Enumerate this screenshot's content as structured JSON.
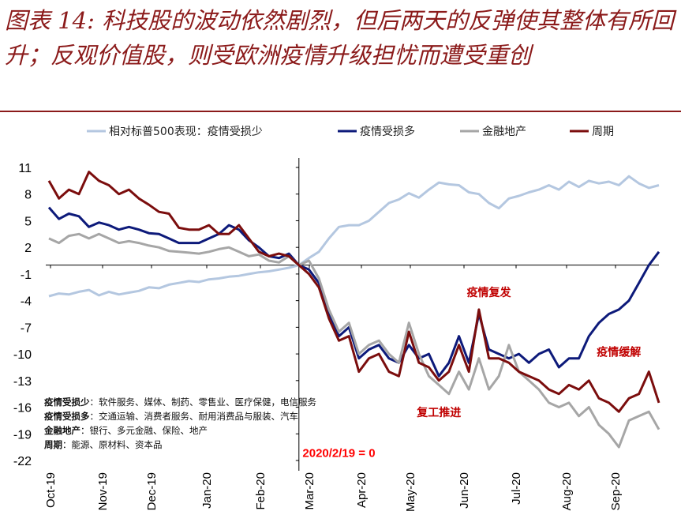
{
  "header": {
    "title": "图表 14: 科技股的波动依然剧烈，但后两天的反弹使其整体有所回升；反观价值股，则受欧洲疫情升级担忧而遭受重创"
  },
  "chart_data": {
    "type": "line",
    "ylim": [
      -22,
      11
    ],
    "yticks": [
      "11",
      "8",
      "5",
      "2",
      "-1",
      "-4",
      "-7",
      "-10",
      "-13",
      "-16",
      "-19",
      "-22"
    ],
    "xticks": [
      "Oct-19",
      "Nov-19",
      "Dec-19",
      "Jan-20",
      "Feb-20",
      "Mar-20",
      "Apr-20",
      "May-20",
      "Jun-20",
      "Jul-20",
      "Aug-20",
      "Sep-20"
    ],
    "legend_position": "top",
    "series": [
      {
        "name": "相对标普500表现：疫情受损少",
        "color": "#b4c7e0",
        "points": [
          [
            0,
            -3.5
          ],
          [
            1,
            -3.2
          ],
          [
            2,
            -3.3
          ],
          [
            3,
            -3.0
          ],
          [
            4,
            -2.8
          ],
          [
            5,
            -3.4
          ],
          [
            6,
            -3.0
          ],
          [
            7,
            -3.3
          ],
          [
            8,
            -3.1
          ],
          [
            9,
            -2.9
          ],
          [
            10,
            -2.5
          ],
          [
            11,
            -2.6
          ],
          [
            12,
            -2.2
          ],
          [
            13,
            -2.0
          ],
          [
            14,
            -1.8
          ],
          [
            15,
            -1.9
          ],
          [
            16,
            -1.6
          ],
          [
            17,
            -1.5
          ],
          [
            18,
            -1.3
          ],
          [
            19,
            -1.2
          ],
          [
            20,
            -1.0
          ],
          [
            21,
            -0.8
          ],
          [
            22,
            -0.7
          ],
          [
            23,
            -0.5
          ],
          [
            24,
            -0.3
          ],
          [
            25,
            0.0
          ],
          [
            26,
            0.8
          ],
          [
            27,
            1.5
          ],
          [
            28,
            3.0
          ],
          [
            29,
            4.3
          ],
          [
            30,
            4.5
          ],
          [
            31,
            4.5
          ],
          [
            32,
            5.0
          ],
          [
            33,
            6.0
          ],
          [
            34,
            7.0
          ],
          [
            35,
            7.4
          ],
          [
            36,
            8.1
          ],
          [
            37,
            7.6
          ],
          [
            38,
            8.5
          ],
          [
            39,
            9.3
          ],
          [
            40,
            9.1
          ],
          [
            41,
            9.0
          ],
          [
            42,
            8.2
          ],
          [
            43,
            8.0
          ],
          [
            44,
            7.0
          ],
          [
            45,
            6.4
          ],
          [
            46,
            7.5
          ],
          [
            47,
            7.8
          ],
          [
            48,
            8.2
          ],
          [
            49,
            8.5
          ],
          [
            50,
            9.0
          ],
          [
            51,
            8.5
          ],
          [
            52,
            9.4
          ],
          [
            53,
            8.8
          ],
          [
            54,
            9.5
          ],
          [
            55,
            9.2
          ],
          [
            56,
            9.4
          ],
          [
            57,
            9.0
          ],
          [
            58,
            10.0
          ],
          [
            59,
            9.2
          ],
          [
            60,
            8.7
          ],
          [
            61,
            9.0
          ]
        ]
      },
      {
        "name": "疫情受损多",
        "color": "#0d1a7a",
        "points": [
          [
            0,
            6.5
          ],
          [
            1,
            5.2
          ],
          [
            2,
            5.8
          ],
          [
            3,
            5.5
          ],
          [
            4,
            4.3
          ],
          [
            5,
            4.8
          ],
          [
            6,
            4.5
          ],
          [
            7,
            4.0
          ],
          [
            8,
            4.3
          ],
          [
            9,
            4.0
          ],
          [
            10,
            3.6
          ],
          [
            11,
            3.5
          ],
          [
            12,
            3.0
          ],
          [
            13,
            2.5
          ],
          [
            14,
            2.5
          ],
          [
            15,
            2.5
          ],
          [
            16,
            3.0
          ],
          [
            17,
            3.5
          ],
          [
            18,
            4.5
          ],
          [
            19,
            4.0
          ],
          [
            20,
            2.8
          ],
          [
            21,
            2.0
          ],
          [
            22,
            1.0
          ],
          [
            23,
            0.8
          ],
          [
            24,
            1.3
          ],
          [
            25,
            0.0
          ],
          [
            26,
            -0.5
          ],
          [
            27,
            -2.0
          ],
          [
            28,
            -5.5
          ],
          [
            29,
            -8.0
          ],
          [
            30,
            -7.0
          ],
          [
            31,
            -10.5
          ],
          [
            32,
            -9.5
          ],
          [
            33,
            -9.0
          ],
          [
            34,
            -10.5
          ],
          [
            35,
            -11.0
          ],
          [
            36,
            -9.0
          ],
          [
            37,
            -10.5
          ],
          [
            38,
            -10.0
          ],
          [
            39,
            -12.5
          ],
          [
            40,
            -11.0
          ],
          [
            41,
            -8.0
          ],
          [
            42,
            -11.0
          ],
          [
            43,
            -5.5
          ],
          [
            44,
            -9.5
          ],
          [
            45,
            -10.0
          ],
          [
            46,
            -10.5
          ],
          [
            47,
            -10.0
          ],
          [
            48,
            -11.0
          ],
          [
            49,
            -10.0
          ],
          [
            50,
            -9.5
          ],
          [
            51,
            -11.5
          ],
          [
            52,
            -10.5
          ],
          [
            53,
            -10.5
          ],
          [
            54,
            -8.0
          ],
          [
            55,
            -6.5
          ],
          [
            56,
            -5.5
          ],
          [
            57,
            -5.0
          ],
          [
            58,
            -4.0
          ],
          [
            59,
            -2.0
          ],
          [
            60,
            0.0
          ],
          [
            61,
            1.5
          ]
        ]
      },
      {
        "name": "金融地产",
        "color": "#a6a6a6",
        "points": [
          [
            0,
            3.0
          ],
          [
            1,
            2.5
          ],
          [
            2,
            3.3
          ],
          [
            3,
            3.5
          ],
          [
            4,
            3.0
          ],
          [
            5,
            3.5
          ],
          [
            6,
            3.0
          ],
          [
            7,
            2.5
          ],
          [
            8,
            2.7
          ],
          [
            9,
            2.5
          ],
          [
            10,
            2.2
          ],
          [
            11,
            2.0
          ],
          [
            12,
            1.6
          ],
          [
            13,
            1.5
          ],
          [
            14,
            1.4
          ],
          [
            15,
            1.3
          ],
          [
            16,
            1.5
          ],
          [
            17,
            1.8
          ],
          [
            18,
            2.0
          ],
          [
            19,
            1.5
          ],
          [
            20,
            1.0
          ],
          [
            21,
            1.2
          ],
          [
            22,
            0.5
          ],
          [
            23,
            0.3
          ],
          [
            24,
            1.0
          ],
          [
            25,
            0.0
          ],
          [
            26,
            0.5
          ],
          [
            27,
            -1.5
          ],
          [
            28,
            -5.0
          ],
          [
            29,
            -7.5
          ],
          [
            30,
            -6.5
          ],
          [
            31,
            -10.0
          ],
          [
            32,
            -9.0
          ],
          [
            33,
            -8.5
          ],
          [
            34,
            -10.0
          ],
          [
            35,
            -11.0
          ],
          [
            36,
            -6.5
          ],
          [
            37,
            -10.0
          ],
          [
            38,
            -12.5
          ],
          [
            39,
            -13.5
          ],
          [
            40,
            -14.5
          ],
          [
            41,
            -12.0
          ],
          [
            42,
            -14.0
          ],
          [
            43,
            -10.5
          ],
          [
            44,
            -14.0
          ],
          [
            45,
            -12.5
          ],
          [
            46,
            -9.0
          ],
          [
            47,
            -12.0
          ],
          [
            48,
            -13.0
          ],
          [
            49,
            -14.0
          ],
          [
            50,
            -15.5
          ],
          [
            51,
            -16.0
          ],
          [
            52,
            -15.5
          ],
          [
            53,
            -17.0
          ],
          [
            54,
            -16.0
          ],
          [
            55,
            -18.0
          ],
          [
            56,
            -19.0
          ],
          [
            57,
            -20.5
          ],
          [
            58,
            -17.5
          ],
          [
            59,
            -17.0
          ],
          [
            60,
            -16.5
          ],
          [
            61,
            -18.5
          ]
        ]
      },
      {
        "name": "周期",
        "color": "#7b0d0d",
        "points": [
          [
            0,
            9.5
          ],
          [
            1,
            7.5
          ],
          [
            2,
            8.5
          ],
          [
            3,
            8.0
          ],
          [
            4,
            10.5
          ],
          [
            5,
            9.5
          ],
          [
            6,
            9.0
          ],
          [
            7,
            8.0
          ],
          [
            8,
            8.5
          ],
          [
            9,
            7.5
          ],
          [
            10,
            6.8
          ],
          [
            11,
            6.0
          ],
          [
            12,
            5.8
          ],
          [
            13,
            4.2
          ],
          [
            14,
            4.0
          ],
          [
            15,
            4.0
          ],
          [
            16,
            4.5
          ],
          [
            17,
            3.5
          ],
          [
            18,
            3.5
          ],
          [
            19,
            4.5
          ],
          [
            20,
            3.0
          ],
          [
            21,
            1.5
          ],
          [
            22,
            1.0
          ],
          [
            23,
            1.3
          ],
          [
            24,
            1.0
          ],
          [
            25,
            0.0
          ],
          [
            26,
            -1.0
          ],
          [
            27,
            -2.5
          ],
          [
            28,
            -6.0
          ],
          [
            29,
            -8.5
          ],
          [
            30,
            -8.0
          ],
          [
            31,
            -12.0
          ],
          [
            32,
            -10.5
          ],
          [
            33,
            -10.0
          ],
          [
            34,
            -12.0
          ],
          [
            35,
            -12.5
          ],
          [
            36,
            -7.5
          ],
          [
            37,
            -11.0
          ],
          [
            38,
            -11.5
          ],
          [
            39,
            -13.0
          ],
          [
            40,
            -12.0
          ],
          [
            41,
            -9.0
          ],
          [
            42,
            -12.0
          ],
          [
            43,
            -5.0
          ],
          [
            44,
            -10.5
          ],
          [
            45,
            -10.5
          ],
          [
            46,
            -11.0
          ],
          [
            47,
            -12.0
          ],
          [
            48,
            -12.5
          ],
          [
            49,
            -13.0
          ],
          [
            50,
            -14.0
          ],
          [
            51,
            -14.5
          ],
          [
            52,
            -13.5
          ],
          [
            53,
            -14.0
          ],
          [
            54,
            -13.0
          ],
          [
            55,
            -15.0
          ],
          [
            56,
            -15.5
          ],
          [
            57,
            -16.5
          ],
          [
            58,
            -15.0
          ],
          [
            59,
            -14.5
          ],
          [
            60,
            -12.0
          ],
          [
            61,
            -15.5
          ]
        ]
      }
    ],
    "annotations": [
      {
        "text": "疫情复发",
        "x": 44,
        "y": -3.5
      },
      {
        "text": "疫情缓解",
        "x": 57,
        "y": -10.2
      },
      {
        "text": "复工推进",
        "x": 39,
        "y": -17
      },
      {
        "text": "2020/2/19 = 0",
        "x": 29,
        "y": -21.6
      }
    ],
    "notes": [
      {
        "label": "疫情受损少",
        "text": "：软件服务、媒体、制药、零售业、医疗保健，电信服务"
      },
      {
        "label": "疫情受损多",
        "text": "：交通运输、消费者服务、耐用消费品与服装、汽车"
      },
      {
        "label": "金融地产",
        "text": "：银行、多元金融、保险、地产"
      },
      {
        "label": "周期",
        "text": "：能源、原材料、资本品"
      }
    ]
  }
}
